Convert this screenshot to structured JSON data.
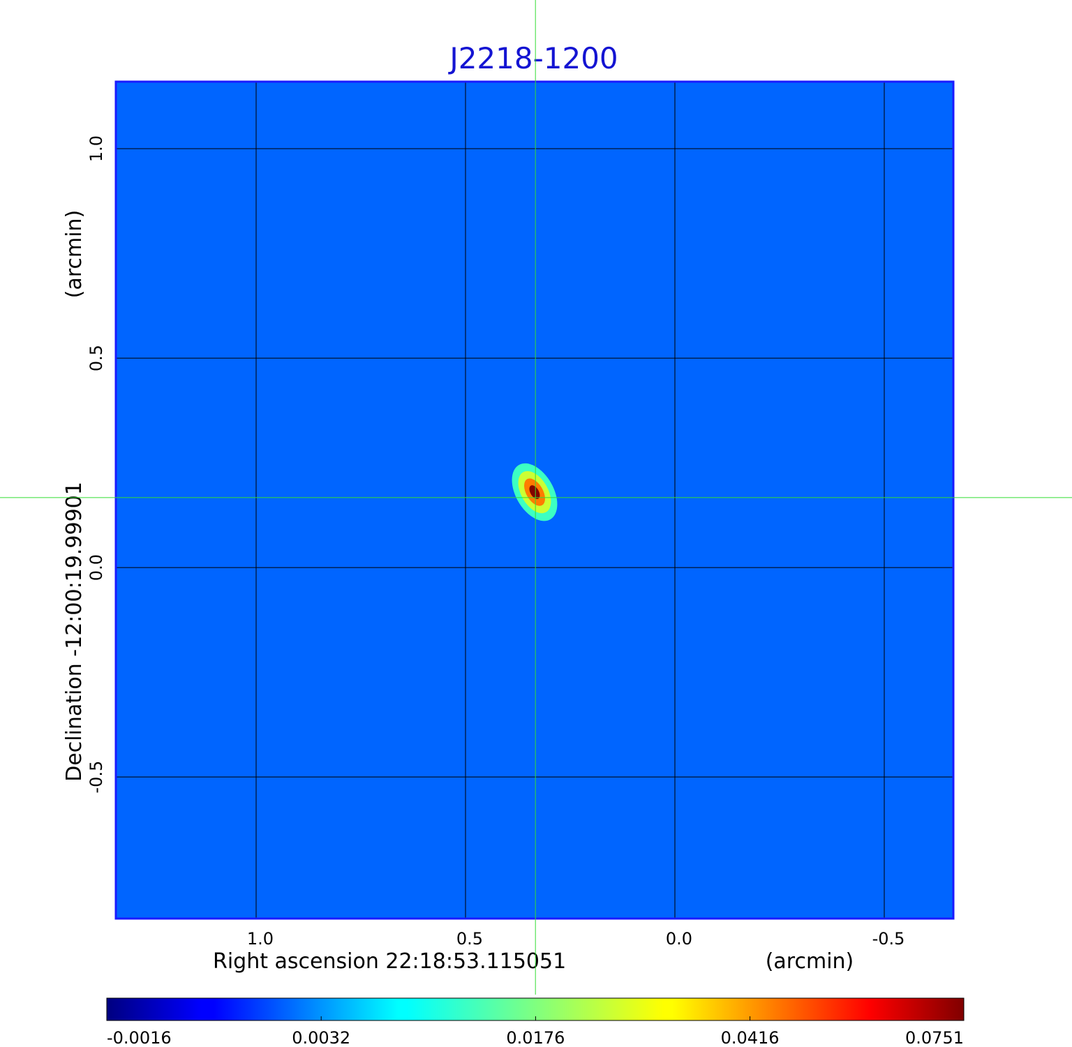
{
  "chart_data": {
    "type": "image",
    "title": "J2218-1200",
    "title_color": "#1414d2",
    "x_label": "Right ascension  22:18:53.115051",
    "x_unit": "(arcmin)",
    "y_label": "Declination  -12:00:19.99901",
    "y_unit": "(arcmin)",
    "xlim": [
      1.335,
      -0.665
    ],
    "ylim": [
      -0.838,
      1.16
    ],
    "xticks": [
      {
        "value": 1,
        "label": "1.0"
      },
      0.5,
      {
        "value": 0,
        "label": "0.0"
      },
      -0.5
    ],
    "yticks": [
      {
        "value": 1,
        "label": "1.0"
      },
      0.5,
      {
        "value": 0,
        "label": "0.0"
      },
      -0.5
    ],
    "grid": true,
    "background": 0.0018,
    "source": {
      "x": 0.335,
      "y": 0.18,
      "angle": -30,
      "levels": [
        {
          "value": 0.012,
          "rx": 0.045,
          "ry": 0.075
        },
        {
          "value": 0.025,
          "rx": 0.032,
          "ry": 0.055
        },
        {
          "value": 0.045,
          "rx": 0.02,
          "ry": 0.036
        },
        {
          "value": 0.0751,
          "rx": 0.01,
          "ry": 0.018
        }
      ]
    },
    "crosshair": {
      "x": 0.333,
      "y": 0.167,
      "color": "#33dd33"
    },
    "colorbar": {
      "colormap": "jet",
      "scale": "sqrt",
      "lim": [
        -0.0016,
        0.0751
      ],
      "ticks": [
        -0.0016,
        0.0032,
        0.0176,
        0.0416,
        0.0751
      ]
    }
  }
}
